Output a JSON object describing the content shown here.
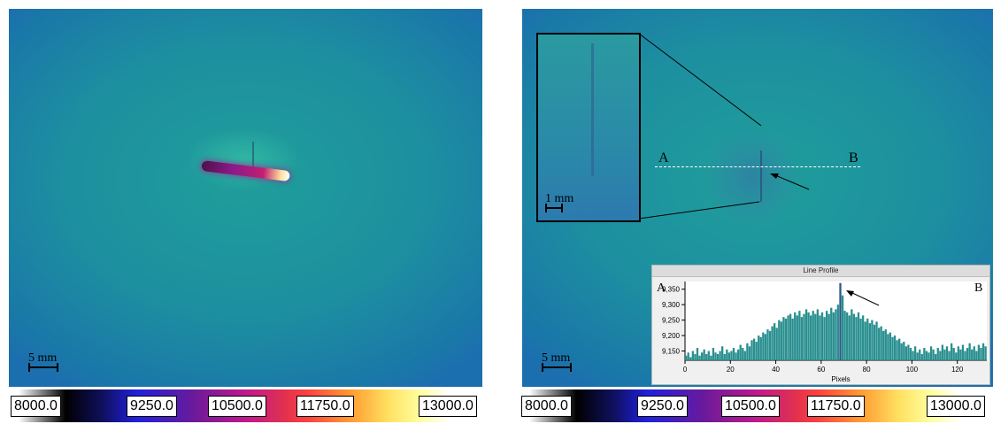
{
  "left_panel": {
    "scale_label": "5 mm"
  },
  "right_panel": {
    "scale_label": "5 mm",
    "inset_scale_label": "1 mm",
    "marker_a": "A",
    "marker_b": "B"
  },
  "colorbar": {
    "labels": [
      "8000.0",
      "9250.0",
      "10500.0",
      "11750.0",
      "13000.0"
    ]
  },
  "line_profile": {
    "title": "Line Profile",
    "marker_a": "A",
    "marker_b": "B",
    "xlabel": "Pixels"
  },
  "chart_data": {
    "type": "bar",
    "title": "Line Profile",
    "xlabel": "Pixels",
    "ylabel": "",
    "x_ticks": [
      0,
      20,
      40,
      60,
      80,
      100,
      120
    ],
    "y_ticks": [
      9150,
      9200,
      9250,
      9300,
      9350
    ],
    "y_tick_labels": [
      "9,150",
      "9,200",
      "9,250",
      "9,300",
      "9,350"
    ],
    "xlim": [
      0,
      133
    ],
    "ylim": [
      9120,
      9375
    ],
    "values": [
      9135,
      9145,
      9130,
      9150,
      9140,
      9160,
      9135,
      9145,
      9155,
      9140,
      9150,
      9135,
      9160,
      9145,
      9140,
      9150,
      9165,
      9140,
      9155,
      9145,
      9150,
      9160,
      9145,
      9155,
      9170,
      9160,
      9150,
      9175,
      9165,
      9185,
      9190,
      9180,
      9200,
      9195,
      9210,
      9205,
      9220,
      9215,
      9230,
      9240,
      9225,
      9250,
      9245,
      9260,
      9255,
      9265,
      9270,
      9255,
      9275,
      9265,
      9280,
      9260,
      9270,
      9285,
      9275,
      9265,
      9280,
      9270,
      9285,
      9265,
      9275,
      9260,
      9280,
      9270,
      9290,
      9275,
      9285,
      9300,
      9370,
      9330,
      9280,
      9275,
      9265,
      9285,
      9270,
      9260,
      9275,
      9255,
      9265,
      9245,
      9255,
      9240,
      9250,
      9235,
      9245,
      9225,
      9230,
      9215,
      9220,
      9205,
      9210,
      9195,
      9200,
      9185,
      9190,
      9175,
      9180,
      9165,
      9170,
      9160,
      9150,
      9165,
      9145,
      9155,
      9140,
      9160,
      9150,
      9145,
      9165,
      9155,
      9140,
      9160,
      9150,
      9170,
      9155,
      9165,
      9150,
      9175,
      9160,
      9145,
      9165,
      9155,
      9170,
      9150,
      9160,
      9175,
      9155,
      9165,
      9150,
      9170,
      9160,
      9175,
      9165
    ]
  }
}
